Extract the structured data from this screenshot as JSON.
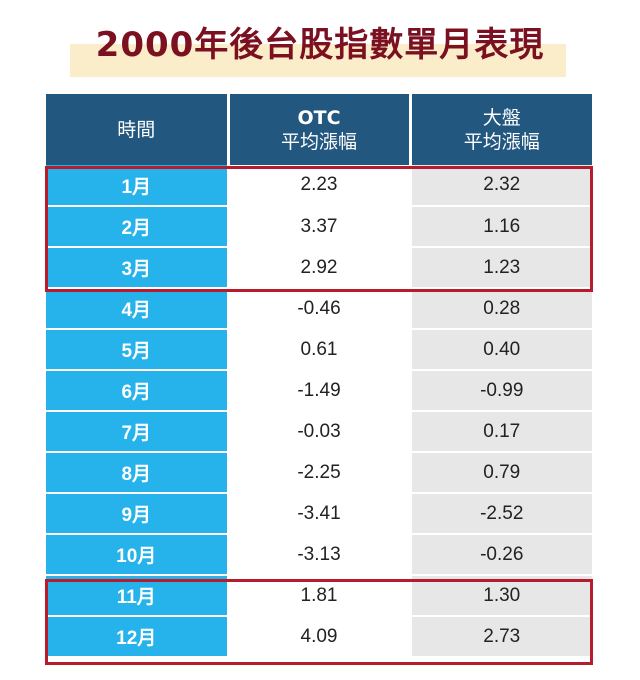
{
  "title": "2000年後台股指數單月表現",
  "table": {
    "headers": [
      {
        "line1": "時間",
        "line2": ""
      },
      {
        "line1": "OTC",
        "line2": "平均漲幅"
      },
      {
        "line1": "大盤",
        "line2": "平均漲幅"
      }
    ],
    "rows": [
      {
        "month": "1月",
        "otc": "2.23",
        "market": "2.32"
      },
      {
        "month": "2月",
        "otc": "3.37",
        "market": "1.16"
      },
      {
        "month": "3月",
        "otc": "2.92",
        "market": "1.23"
      },
      {
        "month": "4月",
        "otc": "-0.46",
        "market": "0.28"
      },
      {
        "month": "5月",
        "otc": "0.61",
        "market": "0.40"
      },
      {
        "month": "6月",
        "otc": "-1.49",
        "market": "-0.99"
      },
      {
        "month": "7月",
        "otc": "-0.03",
        "market": "0.17"
      },
      {
        "month": "8月",
        "otc": "-2.25",
        "market": "0.79"
      },
      {
        "month": "9月",
        "otc": "-3.41",
        "market": "-2.52"
      },
      {
        "month": "10月",
        "otc": "-3.13",
        "market": "-0.26"
      },
      {
        "month": "11月",
        "otc": "1.81",
        "market": "1.30"
      },
      {
        "month": "12月",
        "otc": "4.09",
        "market": "2.73"
      }
    ]
  },
  "colors": {
    "header_bg": "#225780",
    "month_bg": "#26b3ec",
    "market_bg": "#e7e7e7",
    "highlight_border": "#b71c2c",
    "title_color": "#7a1020",
    "title_band": "#fbedc9"
  }
}
